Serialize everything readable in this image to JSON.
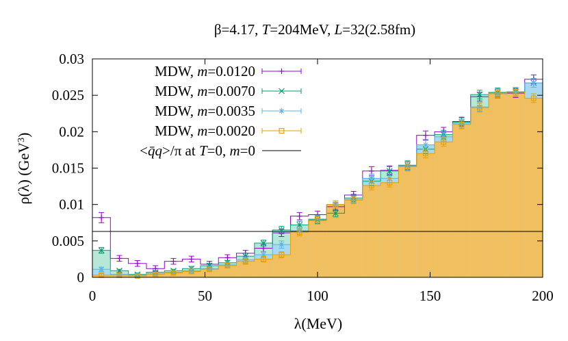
{
  "chart_data": {
    "type": "bar",
    "title_parts": [
      "β=4.17, ",
      "T",
      "=204MeV, ",
      "L",
      "=32(2.58fm)"
    ],
    "xlabel": "λ(MeV)",
    "ylabel": "ρ(λ) (GeV",
    "ylabel_sup": "3",
    "ylabel_close": ")",
    "xlim": [
      0,
      200
    ],
    "ylim": [
      0,
      0.03
    ],
    "xticks": [
      0,
      50,
      100,
      150,
      200
    ],
    "xtick_labels": [
      "0",
      "50",
      "100",
      "150",
      "200"
    ],
    "yticks": [
      0,
      0.005,
      0.01,
      0.015,
      0.02,
      0.025,
      0.03
    ],
    "ytick_labels": [
      "0",
      "0.005",
      "0.01",
      "0.015",
      "0.02",
      "0.025",
      "0.03"
    ],
    "bin_width": 8,
    "bin_centers": [
      4,
      12,
      20,
      28,
      36,
      44,
      52,
      60,
      68,
      76,
      84,
      92,
      100,
      108,
      116,
      124,
      132,
      140,
      148,
      156,
      164,
      172,
      180,
      188,
      196
    ],
    "series": [
      {
        "legend_prefix": "MDW, ",
        "legend_var": "m",
        "legend_value": "=0.0120",
        "color": "#9400d3",
        "fill": "none",
        "marker": "plus",
        "values": [
          0.0082,
          0.0026,
          0.0019,
          0.0012,
          0.0022,
          0.0025,
          0.0018,
          0.0027,
          0.0033,
          0.004,
          0.0061,
          0.0084,
          0.0086,
          0.0097,
          0.0113,
          0.0146,
          0.0147,
          0.0153,
          0.0195,
          0.02,
          0.0214,
          0.0248,
          0.0252,
          0.0253,
          0.0272
        ],
        "errors": [
          0.0007,
          0.0004,
          0.0004,
          0.0004,
          0.0004,
          0.0004,
          0.0004,
          0.0004,
          0.0004,
          0.0005,
          0.0005,
          0.0005,
          0.0005,
          0.0005,
          0.0005,
          0.0006,
          0.0006,
          0.0006,
          0.0006,
          0.0006,
          0.0006,
          0.0006,
          0.0006,
          0.0006,
          0.0006
        ]
      },
      {
        "legend_prefix": "MDW, ",
        "legend_var": "m",
        "legend_value": "=0.0070",
        "color": "#009e73",
        "fill": "#b7e8d7",
        "marker": "cross",
        "values": [
          0.0037,
          0.0009,
          0.0004,
          0.0007,
          0.0009,
          0.0012,
          0.0016,
          0.002,
          0.0029,
          0.0047,
          0.0065,
          0.0072,
          0.0079,
          0.0088,
          0.0109,
          0.0132,
          0.0146,
          0.0154,
          0.0176,
          0.0196,
          0.0213,
          0.0251,
          0.0254,
          0.0255,
          0.0267
        ],
        "errors": [
          0.0004,
          0.0002,
          0.0002,
          0.0002,
          0.0002,
          0.0003,
          0.0003,
          0.0003,
          0.0004,
          0.0004,
          0.0005,
          0.0005,
          0.0005,
          0.0005,
          0.0005,
          0.0006,
          0.0006,
          0.0006,
          0.0006,
          0.0006,
          0.0006,
          0.0006,
          0.0006,
          0.0006,
          0.0006
        ]
      },
      {
        "legend_prefix": "MDW, ",
        "legend_var": "m",
        "legend_value": "=0.0035",
        "color": "#56b4e9",
        "fill": "#a9d9f0",
        "marker": "star",
        "values": [
          0.0011,
          0.0004,
          0.0003,
          0.0005,
          0.0007,
          0.0009,
          0.0012,
          0.0017,
          0.0024,
          0.0031,
          0.0045,
          0.0064,
          0.008,
          0.01,
          0.0107,
          0.0136,
          0.0136,
          0.0153,
          0.0182,
          0.0193,
          0.0211,
          0.0234,
          0.0252,
          0.0254,
          0.0267
        ],
        "errors": [
          0.0003,
          0.0002,
          0.0002,
          0.0002,
          0.0002,
          0.0003,
          0.0003,
          0.0003,
          0.0004,
          0.0004,
          0.0005,
          0.0005,
          0.0005,
          0.0005,
          0.0005,
          0.0006,
          0.0006,
          0.0006,
          0.0006,
          0.0006,
          0.0006,
          0.0006,
          0.0006,
          0.0006,
          0.0006
        ]
      },
      {
        "legend_prefix": "MDW, ",
        "legend_var": "m",
        "legend_value": "=0.0020",
        "color": "#e69f00",
        "fill": "#f0c060",
        "marker": "square",
        "values": [
          0.0003,
          0.0003,
          0.0002,
          0.0004,
          0.0006,
          0.0008,
          0.0011,
          0.0016,
          0.0022,
          0.0025,
          0.0031,
          0.0062,
          0.0078,
          0.01,
          0.0106,
          0.0126,
          0.013,
          0.0152,
          0.017,
          0.0186,
          0.021,
          0.0233,
          0.0253,
          0.0255,
          0.0246
        ],
        "errors": [
          0.0002,
          0.0002,
          0.0002,
          0.0002,
          0.0002,
          0.0003,
          0.0003,
          0.0003,
          0.0004,
          0.0004,
          0.0004,
          0.0005,
          0.0005,
          0.0005,
          0.0005,
          0.0006,
          0.0006,
          0.0006,
          0.0006,
          0.0006,
          0.0006,
          0.0006,
          0.0006,
          0.0006,
          0.0006
        ]
      }
    ],
    "reference_line": {
      "legend_parts": [
        "<",
        "q̄q",
        ">/π at ",
        "T",
        "=0, ",
        "m",
        "=0"
      ],
      "y": 0.0063,
      "color": "#000000"
    },
    "legend_position": "top-left"
  }
}
